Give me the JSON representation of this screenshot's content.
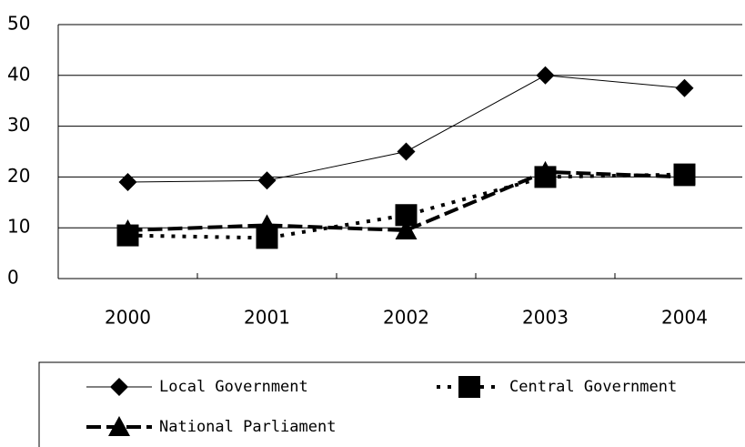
{
  "chart_data": {
    "type": "line",
    "categories": [
      "2000",
      "2001",
      "2002",
      "2003",
      "2004"
    ],
    "series": [
      {
        "name": "Local Government",
        "color": "#000000",
        "marker": "diamond",
        "style": "solid",
        "values": [
          19,
          19.3,
          25,
          40,
          37.5
        ]
      },
      {
        "name": "Central Government",
        "color": "#000000",
        "marker": "square",
        "style": "dotted",
        "values": [
          8.5,
          8,
          12.5,
          20,
          20.5
        ]
      },
      {
        "name": "National Parliament",
        "color": "#000000",
        "marker": "triangle",
        "style": "dashed",
        "values": [
          9.5,
          10.5,
          9.5,
          21,
          20
        ]
      }
    ],
    "ylim": [
      0,
      50
    ],
    "yticks": [
      0,
      10,
      20,
      30,
      40,
      50
    ],
    "grid": true,
    "legend": "bottom"
  }
}
